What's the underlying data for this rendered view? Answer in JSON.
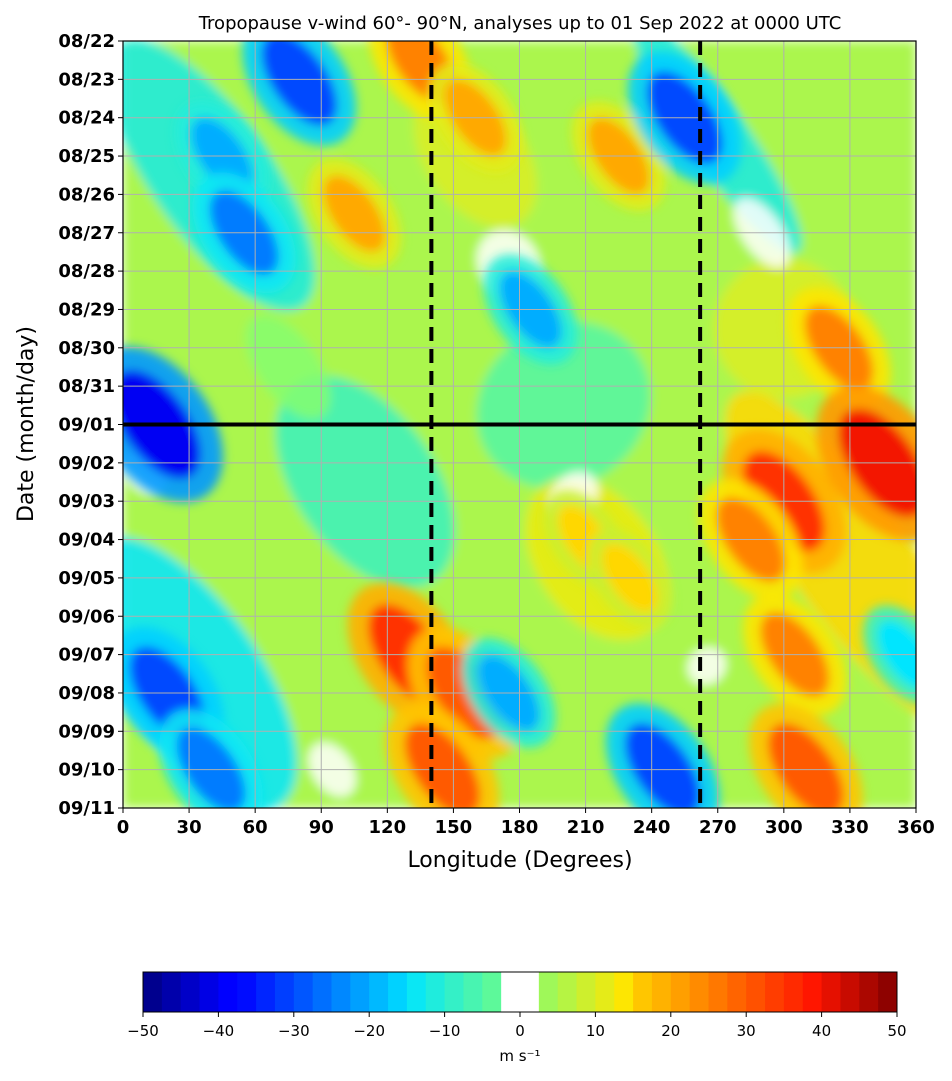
{
  "chart_data": {
    "type": "heatmap",
    "title": "Tropopause v-wind 60°- 90°N, analyses up to 01 Sep 2022 at 0000 UTC",
    "xlabel": "Longitude (Degrees)",
    "ylabel": "Date (month/day)",
    "x_ticks": [
      0,
      30,
      60,
      90,
      120,
      150,
      180,
      210,
      240,
      270,
      300,
      330,
      360
    ],
    "x_tick_labels": [
      "0",
      "30",
      "60",
      "90",
      "120",
      "150",
      "180",
      "210",
      "240",
      "270",
      "300",
      "330",
      "360"
    ],
    "xlim": [
      0,
      360
    ],
    "y_tick_labels": [
      "08/22",
      "08/23",
      "08/24",
      "08/25",
      "08/26",
      "08/27",
      "08/28",
      "08/29",
      "08/30",
      "08/31",
      "09/01",
      "09/02",
      "09/03",
      "09/04",
      "09/05",
      "09/06",
      "09/07",
      "09/08",
      "09/09",
      "09/10",
      "09/11"
    ],
    "grid": true,
    "analysis_line_date": "09/01",
    "dashed_longitudes": [
      140,
      262
    ],
    "colorbar": {
      "label": "m s⁻¹",
      "min": -50,
      "max": 50,
      "step": 2.5,
      "white_band": [
        -2.5,
        2.5
      ],
      "ticks": [
        -50,
        -40,
        -30,
        -20,
        -10,
        0,
        10,
        20,
        30,
        40,
        50
      ],
      "tick_labels": [
        "−50",
        "−40",
        "−30",
        "−20",
        "−10",
        "0",
        "10",
        "20",
        "30",
        "40",
        "50"
      ]
    },
    "features": [
      {
        "lon": 80,
        "date": "08/23",
        "value": -30
      },
      {
        "lon": 135,
        "date": "08/22.5",
        "value": 25
      },
      {
        "lon": 160,
        "date": "08/24",
        "value": 20
      },
      {
        "lon": 225,
        "date": "08/25",
        "value": 20
      },
      {
        "lon": 255,
        "date": "08/24",
        "value": -30
      },
      {
        "lon": 45,
        "date": "08/25",
        "value": -20
      },
      {
        "lon": 55,
        "date": "08/27",
        "value": -25
      },
      {
        "lon": 105,
        "date": "08/26.5",
        "value": 20
      },
      {
        "lon": 185,
        "date": "08/29",
        "value": -20
      },
      {
        "lon": 325,
        "date": "08/30",
        "value": 25
      },
      {
        "lon": 15,
        "date": "09/01",
        "value": -40
      },
      {
        "lon": 345,
        "date": "09/02",
        "value": 40
      },
      {
        "lon": 300,
        "date": "09/03",
        "value": 35
      },
      {
        "lon": 285,
        "date": "09/04",
        "value": 25
      },
      {
        "lon": 210,
        "date": "09/04",
        "value": 15
      },
      {
        "lon": 230,
        "date": "09/05",
        "value": 15
      },
      {
        "lon": 130,
        "date": "09/07",
        "value": 35
      },
      {
        "lon": 155,
        "date": "09/08",
        "value": 30
      },
      {
        "lon": 145,
        "date": "09/10",
        "value": 30
      },
      {
        "lon": 305,
        "date": "09/07",
        "value": 25
      },
      {
        "lon": 310,
        "date": "09/10",
        "value": 30
      },
      {
        "lon": 20,
        "date": "09/08",
        "value": -30
      },
      {
        "lon": 40,
        "date": "09/10",
        "value": -25
      },
      {
        "lon": 245,
        "date": "09/10",
        "value": -30
      },
      {
        "lon": 175,
        "date": "09/08",
        "value": -20
      },
      {
        "lon": 355,
        "date": "09/07",
        "value": -15
      }
    ]
  }
}
